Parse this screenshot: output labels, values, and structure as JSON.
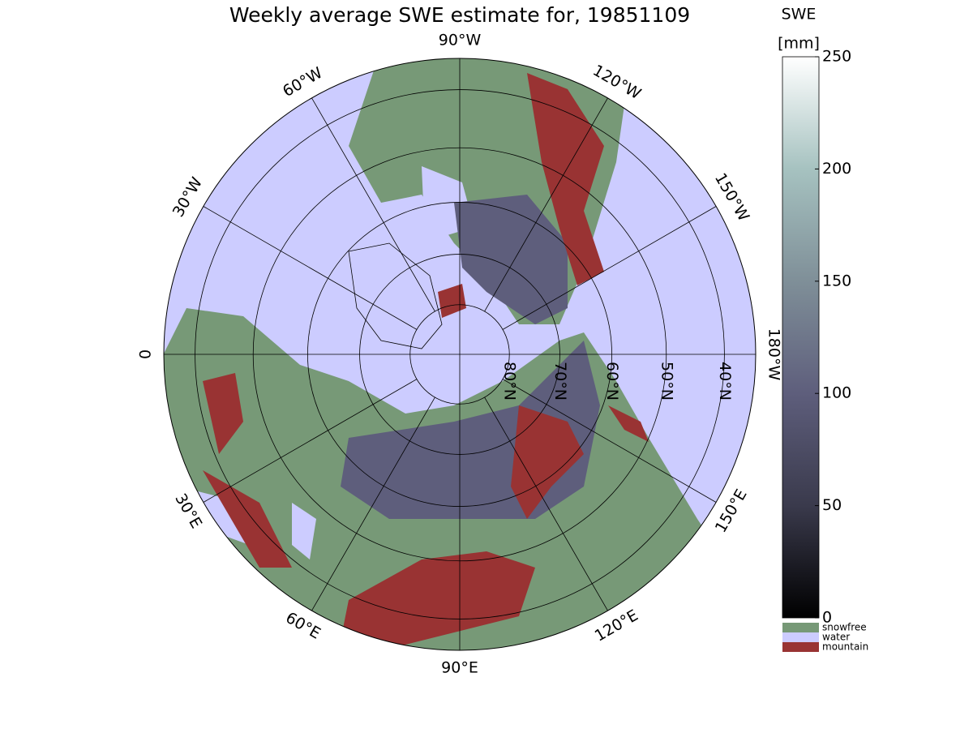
{
  "title": "Weekly average SWE estimate for, 19851109",
  "meridians": [
    {
      "value": -90,
      "label": "90°W"
    },
    {
      "value": -60,
      "label": "60°W"
    },
    {
      "value": -30,
      "label": "30°W"
    },
    {
      "value": 0,
      "label": "0"
    },
    {
      "value": 30,
      "label": "30°E"
    },
    {
      "value": 60,
      "label": "60°E"
    },
    {
      "value": 90,
      "label": "90°E"
    },
    {
      "value": 120,
      "label": "120°E"
    },
    {
      "value": 150,
      "label": "150°E"
    },
    {
      "value": 180,
      "label": "180°W"
    },
    {
      "value": -150,
      "label": "150°W"
    },
    {
      "value": -120,
      "label": "120°W"
    }
  ],
  "parallels": [
    {
      "value": 80,
      "label": "80°N"
    },
    {
      "value": 70,
      "label": "70°N"
    },
    {
      "value": 60,
      "label": "60°N"
    },
    {
      "value": 50,
      "label": "50°N"
    },
    {
      "value": 40,
      "label": "40°N"
    }
  ],
  "colorbar": {
    "title": [
      "SWE",
      "[mm]"
    ],
    "lim": [
      0,
      250
    ],
    "ticks": [
      0,
      50,
      100,
      150,
      200,
      250
    ],
    "colors": [
      "#000000",
      "#3a3a4c",
      "#5e5e7c",
      "#7f8f98",
      "#a6c2c0",
      "#ffffff"
    ],
    "categories": [
      {
        "name": "snowfree",
        "color": "#779977"
      },
      {
        "name": "water",
        "color": "#ccccff"
      },
      {
        "name": "mountain",
        "color": "#993333"
      }
    ]
  }
}
